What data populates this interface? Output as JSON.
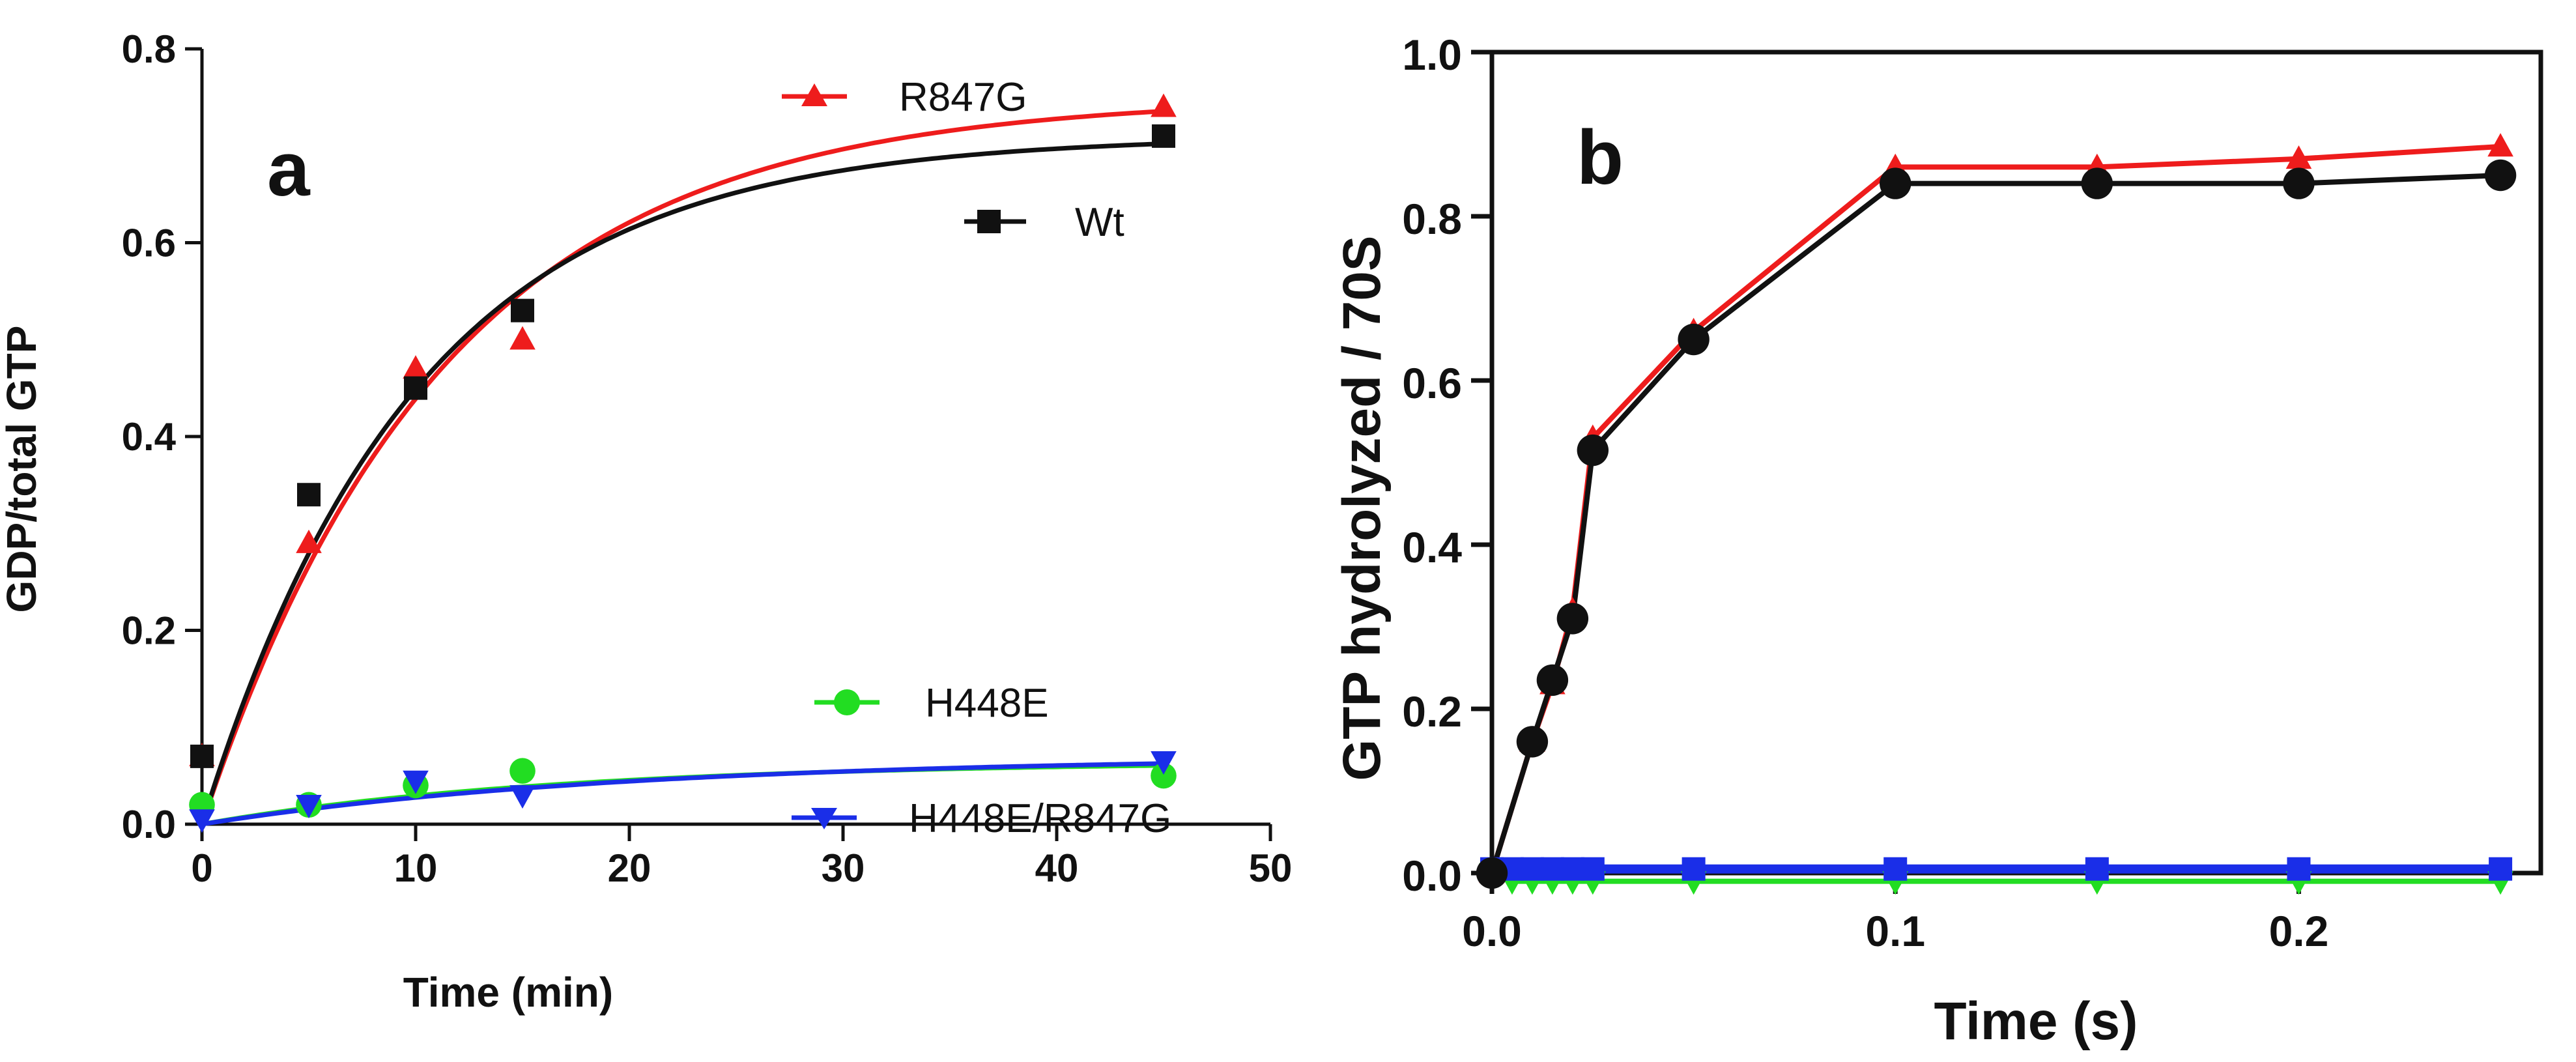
{
  "chart_data": [
    {
      "panel_label": "a",
      "type": "scatter",
      "xlabel": "Time (min)",
      "ylabel": "GDP/total GTP",
      "xlim": [
        0,
        50
      ],
      "ylim": [
        0,
        0.8
      ],
      "xticks": [
        0,
        10,
        20,
        30,
        40,
        50
      ],
      "yticks": [
        0.0,
        0.2,
        0.4,
        0.6,
        0.8
      ],
      "xtick_labels": [
        "0",
        "10",
        "20",
        "30",
        "40",
        "50"
      ],
      "ytick_labels": [
        "0.0",
        "0.2",
        "0.4",
        "0.6",
        "0.8"
      ],
      "series": [
        {
          "name": "R847G",
          "color": "#ee1c1c",
          "marker": "triangle-up",
          "x": [
            0,
            5,
            10,
            15,
            45
          ],
          "y": [
            0.07,
            0.29,
            0.47,
            0.5,
            0.74
          ],
          "fit": {
            "ymax": 0.75,
            "k": 0.088
          }
        },
        {
          "name": "Wt",
          "color": "#111111",
          "marker": "square",
          "x": [
            0,
            5,
            10,
            15,
            45
          ],
          "y": [
            0.07,
            0.34,
            0.45,
            0.53,
            0.71
          ],
          "fit": {
            "ymax": 0.71,
            "k": 0.1
          }
        },
        {
          "name": "H448E",
          "color": "#22dd22",
          "marker": "circle",
          "x": [
            0,
            5,
            10,
            15,
            45
          ],
          "y": [
            0.02,
            0.02,
            0.04,
            0.055,
            0.05
          ],
          "fit": {
            "ymax": 0.065,
            "k": 0.06
          }
        },
        {
          "name": "H448E/R847G",
          "color": "#1a2ee8",
          "marker": "triangle-down",
          "x": [
            0,
            5,
            10,
            15,
            45
          ],
          "y": [
            0.005,
            0.02,
            0.045,
            0.03,
            0.065
          ],
          "fit": {
            "ymax": 0.07,
            "k": 0.05
          }
        }
      ]
    },
    {
      "panel_label": "b",
      "type": "line",
      "xlabel": "Time (s)",
      "ylabel": "GTP hydrolyzed / 70S",
      "xlim": [
        0,
        0.26
      ],
      "ylim": [
        0,
        1.0
      ],
      "xticks": [
        0.0,
        0.1,
        0.2
      ],
      "yticks": [
        0.0,
        0.2,
        0.4,
        0.6,
        0.8,
        1.0
      ],
      "xtick_labels": [
        "0.0",
        "0.1",
        "0.2"
      ],
      "ytick_labels": [
        "0.0",
        "0.2",
        "0.4",
        "0.6",
        "0.8",
        "1.0"
      ],
      "series": [
        {
          "name": "green",
          "color": "#22dd22",
          "marker": "triangle-down",
          "x": [
            0,
            0.005,
            0.01,
            0.015,
            0.02,
            0.025,
            0.05,
            0.1,
            0.15,
            0.2,
            0.25
          ],
          "y": [
            0,
            -0.01,
            -0.01,
            -0.01,
            -0.01,
            -0.01,
            -0.01,
            -0.01,
            -0.01,
            -0.01,
            -0.01
          ]
        },
        {
          "name": "blue",
          "color": "#1a2ee8",
          "marker": "square",
          "x": [
            0,
            0.005,
            0.01,
            0.015,
            0.02,
            0.025,
            0.05,
            0.1,
            0.15,
            0.2,
            0.25
          ],
          "y": [
            0.005,
            0.005,
            0.005,
            0.005,
            0.005,
            0.005,
            0.005,
            0.005,
            0.005,
            0.005,
            0.005
          ]
        },
        {
          "name": "red",
          "color": "#ee1c1c",
          "marker": "triangle-up",
          "x": [
            0,
            0.01,
            0.015,
            0.02,
            0.025,
            0.05,
            0.1,
            0.15,
            0.2,
            0.25
          ],
          "y": [
            0,
            0.16,
            0.23,
            0.32,
            0.53,
            0.66,
            0.86,
            0.86,
            0.87,
            0.885
          ]
        },
        {
          "name": "black",
          "color": "#111111",
          "marker": "circle",
          "x": [
            0,
            0.01,
            0.015,
            0.02,
            0.025,
            0.05,
            0.1,
            0.15,
            0.2,
            0.25
          ],
          "y": [
            0,
            0.16,
            0.235,
            0.31,
            0.515,
            0.65,
            0.84,
            0.84,
            0.84,
            0.85
          ]
        }
      ]
    }
  ]
}
